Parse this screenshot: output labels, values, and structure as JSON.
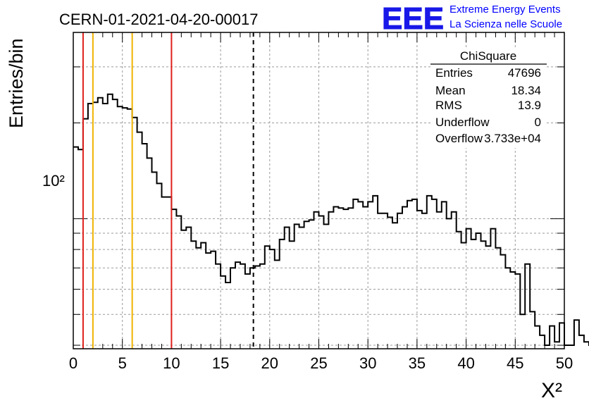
{
  "header": {
    "run_title": "CERN-01-2021-04-20-00017",
    "logo_text": "EEE",
    "brand_line1": "Extreme Energy Events",
    "brand_line2": "La Scienza nelle Scuole"
  },
  "colors": {
    "logo": "#1818e8",
    "brand_text": "#0000ff",
    "red_line": "#e0201c",
    "orange_line": "#f0b400",
    "histogram": "#000000",
    "grid": "#9a9a9a"
  },
  "stats_box": {
    "title": "ChiSquare",
    "rows": [
      {
        "label": "Entries",
        "value": "47696"
      },
      {
        "label": "Mean",
        "value": "18.34"
      },
      {
        "label": "RMS",
        "value": "13.9"
      },
      {
        "label": "Underflow",
        "value": "0"
      },
      {
        "label": "Overflow",
        "value": "3.733e+04"
      }
    ]
  },
  "chart_data": {
    "type": "step-histogram",
    "ylabel": "Entries/bin",
    "xlabel": "X²",
    "xlim": [
      0,
      50
    ],
    "ylim": [
      39,
      385
    ],
    "y_scale": "log",
    "grid": true,
    "x_ticks": [
      "0",
      "5",
      "10",
      "15",
      "20",
      "25",
      "30",
      "35",
      "40",
      "45",
      "50"
    ],
    "y_tick_label": "10²",
    "bin_width": 0.5,
    "bin_counts": [
      168,
      165,
      206,
      230,
      232,
      240,
      230,
      246,
      237,
      225,
      223,
      221,
      208,
      187,
      172,
      155,
      140,
      129,
      117,
      117,
      107,
      102,
      92,
      94,
      85,
      81,
      84,
      78,
      79,
      72,
      66,
      63,
      70,
      73,
      72,
      67,
      70,
      71,
      72,
      82,
      80,
      74,
      86,
      94,
      85,
      96,
      94,
      98,
      99,
      105,
      102,
      96,
      105,
      109,
      108,
      107,
      108,
      115,
      113,
      109,
      113,
      118,
      104,
      104,
      101,
      97,
      104,
      109,
      114,
      115,
      106,
      104,
      118,
      115,
      105,
      113,
      100,
      105,
      91,
      84,
      93,
      86,
      90,
      85,
      82,
      93,
      81,
      77,
      70,
      68,
      67,
      50,
      72,
      51,
      46,
      43,
      40,
      46,
      41,
      47,
      40,
      40,
      48,
      43,
      41,
      40,
      40,
      44,
      41
    ],
    "vertical_lines": [
      {
        "x": 1,
        "color": "red",
        "style": "solid"
      },
      {
        "x": 2,
        "color": "orange",
        "style": "solid"
      },
      {
        "x": 6,
        "color": "orange",
        "style": "solid"
      },
      {
        "x": 10,
        "color": "red",
        "style": "solid"
      },
      {
        "x": 18.34,
        "color": "black",
        "style": "dashed"
      }
    ]
  }
}
